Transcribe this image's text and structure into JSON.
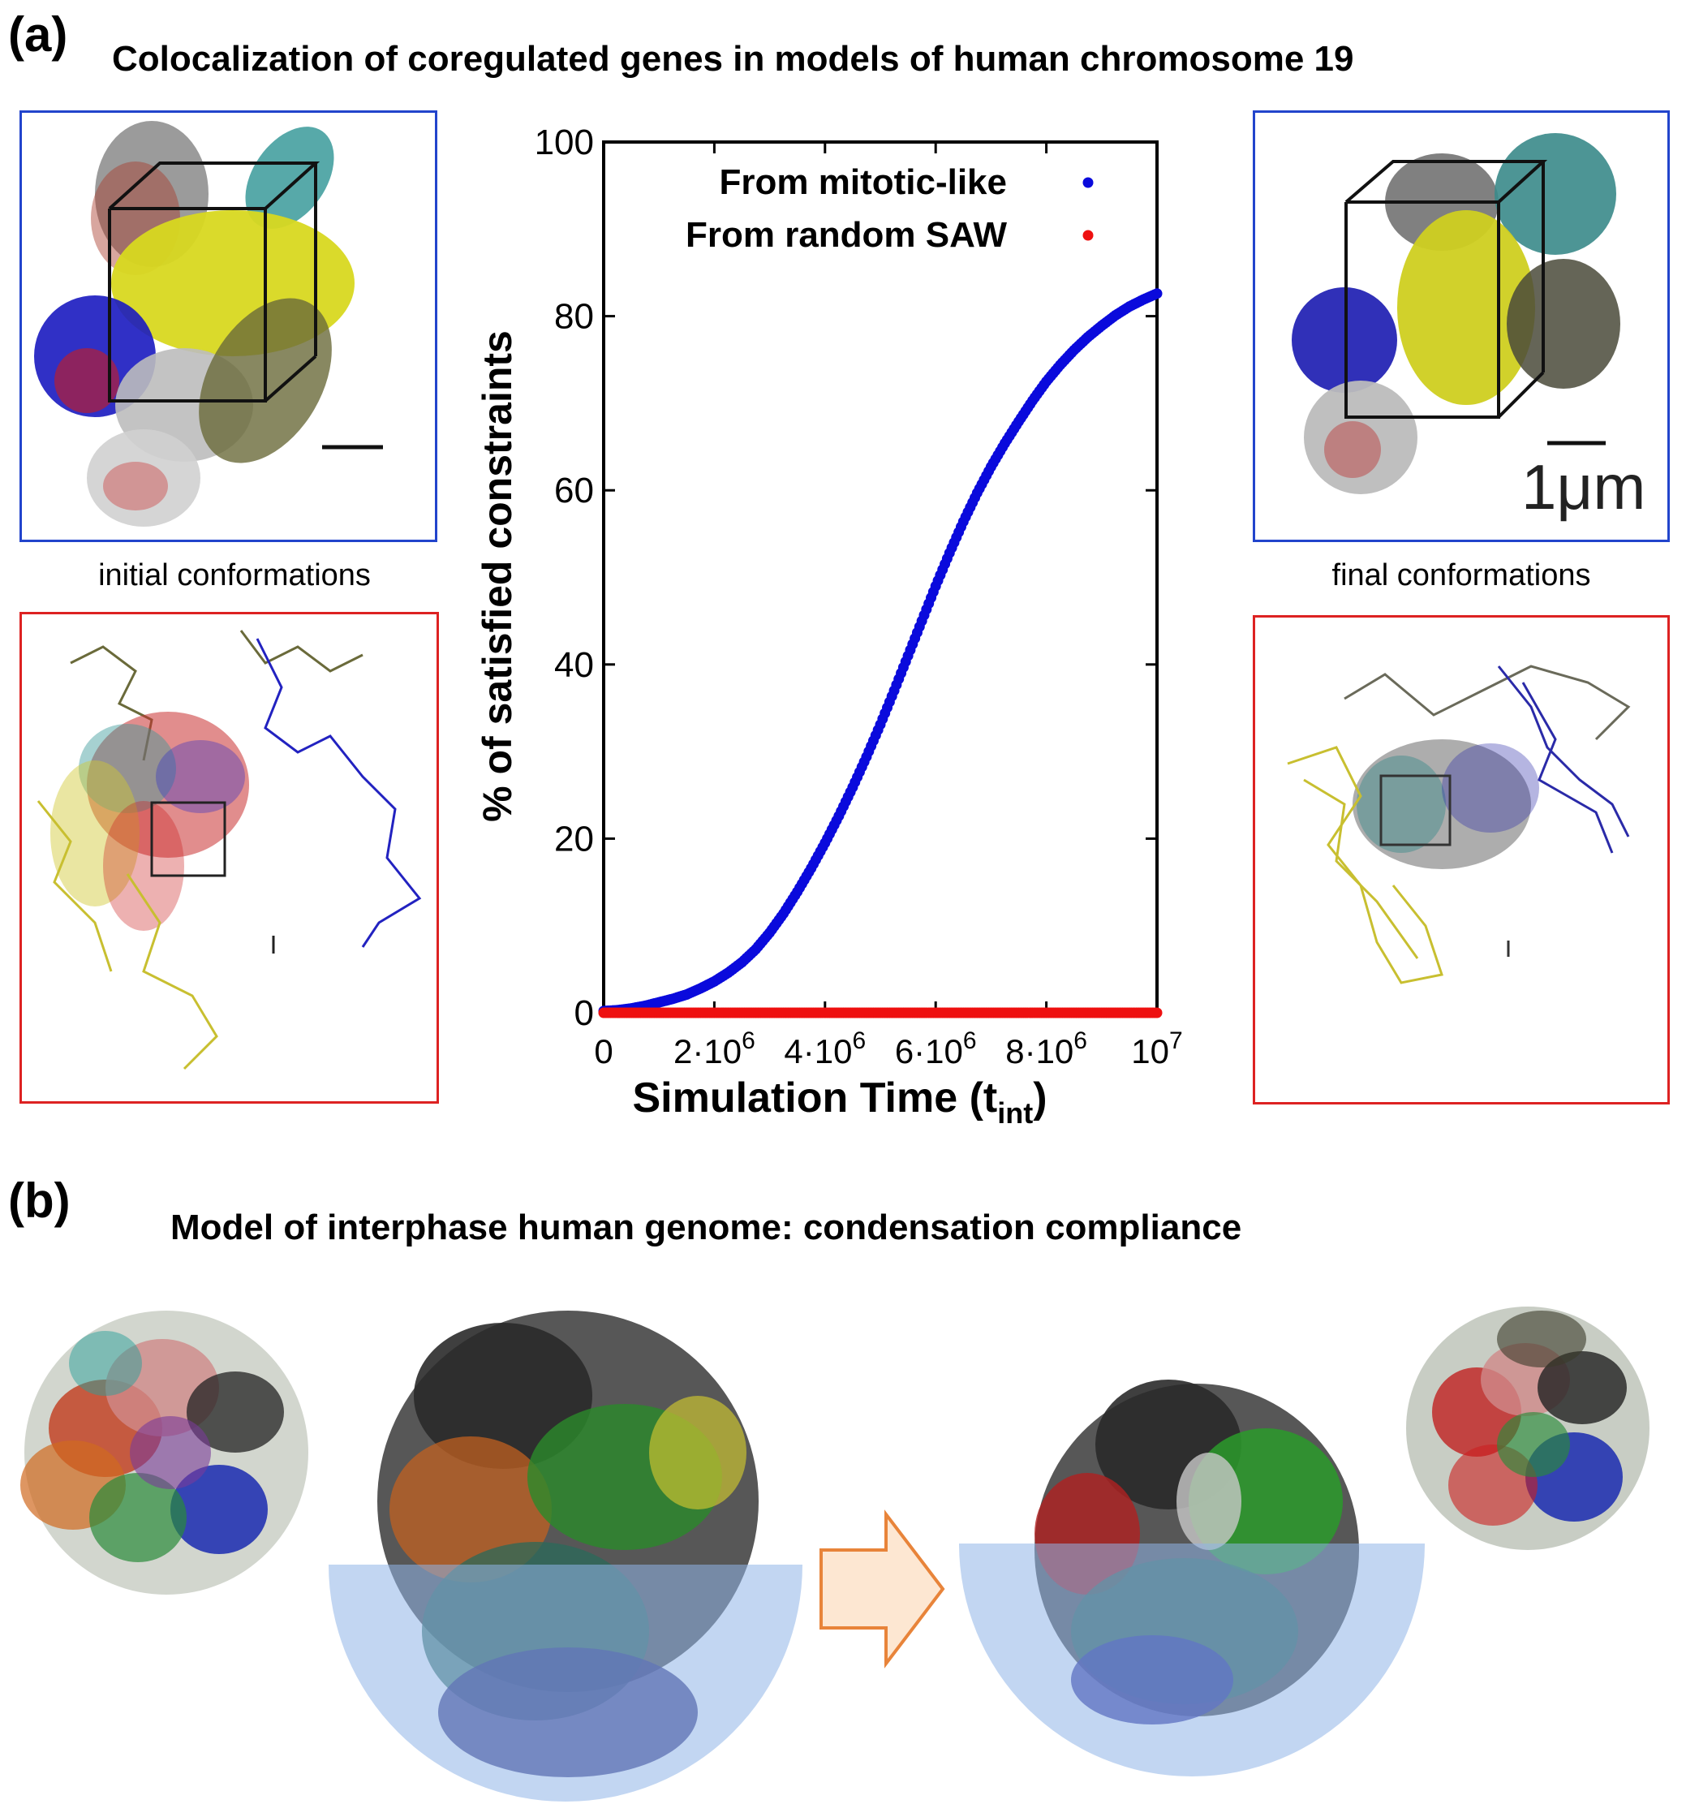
{
  "panel_a": {
    "label": "(a)",
    "title": "Colocalization of coregulated genes in models of human chromosome 19",
    "caption_initial": "initial conformations",
    "caption_final": "final conformations",
    "scale_bar_label": "1μm"
  },
  "panel_b": {
    "label": "(b)",
    "title": "Model of interphase human genome: condensation compliance"
  },
  "colors": {
    "blue_frame": "#2244cc",
    "red_frame": "#dd2222",
    "series_mitotic": "#0a0adc",
    "series_saw": "#ee1010",
    "bowl": "#8fb4e8",
    "arrow_fill": "#fde7d2",
    "arrow_stroke": "#e8843a"
  },
  "chart_data": {
    "type": "scatter",
    "title": "",
    "xlabel": "Simulation Time (t",
    "xlabel_sub": "int",
    "xlabel_end": ")",
    "ylabel": "% of satisfied constraints",
    "xlim": [
      0,
      10000000
    ],
    "ylim": [
      0,
      100
    ],
    "x_ticks": [
      {
        "value": 0,
        "base": "0",
        "exp": ""
      },
      {
        "value": 2000000,
        "base": "2·10",
        "exp": "6"
      },
      {
        "value": 4000000,
        "base": "4·10",
        "exp": "6"
      },
      {
        "value": 6000000,
        "base": "6·10",
        "exp": "6"
      },
      {
        "value": 8000000,
        "base": "8·10",
        "exp": "6"
      },
      {
        "value": 10000000,
        "base": "10",
        "exp": "7"
      }
    ],
    "y_ticks": [
      0,
      20,
      40,
      60,
      80,
      100
    ],
    "legend_position": "top-right",
    "series": [
      {
        "name": "From mitotic-like",
        "color": "#0a0adc",
        "x": [
          0,
          250000,
          500000,
          750000,
          1000000,
          1250000,
          1500000,
          1750000,
          2000000,
          2250000,
          2500000,
          2750000,
          3000000,
          3250000,
          3500000,
          3750000,
          4000000,
          4250000,
          4500000,
          4750000,
          5000000,
          5250000,
          5500000,
          5750000,
          6000000,
          6250000,
          6500000,
          6750000,
          7000000,
          7250000,
          7500000,
          7750000,
          8000000,
          8250000,
          8500000,
          8750000,
          9000000,
          9250000,
          9500000,
          9750000,
          10000000
        ],
        "values": [
          0.2,
          0.3,
          0.5,
          0.8,
          1.2,
          1.6,
          2.1,
          2.8,
          3.6,
          4.6,
          5.8,
          7.3,
          9.2,
          11.4,
          13.9,
          16.6,
          19.5,
          22.6,
          25.9,
          29.4,
          33.1,
          37.0,
          41.0,
          45.0,
          49.0,
          52.8,
          56.4,
          59.7,
          62.7,
          65.4,
          67.9,
          70.3,
          72.5,
          74.4,
          76.1,
          77.6,
          78.9,
          80.1,
          81.1,
          81.9,
          82.6
        ]
      },
      {
        "name": "From random SAW",
        "color": "#ee1010",
        "x": [
          0,
          250000,
          500000,
          750000,
          1000000,
          1250000,
          1500000,
          1750000,
          2000000,
          2250000,
          2500000,
          2750000,
          3000000,
          3250000,
          3500000,
          3750000,
          4000000,
          4250000,
          4500000,
          4750000,
          5000000,
          5250000,
          5500000,
          5750000,
          6000000,
          6250000,
          6500000,
          6750000,
          7000000,
          7250000,
          7500000,
          7750000,
          8000000,
          8250000,
          8500000,
          8750000,
          9000000,
          9250000,
          9500000,
          9750000,
          10000000
        ],
        "values": [
          0,
          0,
          0,
          0,
          0,
          0,
          0,
          0,
          0,
          0,
          0,
          0,
          0,
          0,
          0,
          0,
          0,
          0,
          0,
          0,
          0,
          0,
          0,
          0,
          0,
          0,
          0,
          0,
          0,
          0,
          0,
          0,
          0,
          0,
          0,
          0,
          0,
          0,
          0,
          0,
          0
        ]
      }
    ]
  }
}
